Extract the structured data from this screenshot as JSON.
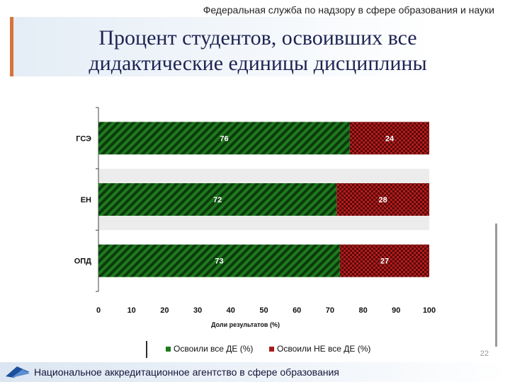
{
  "header": {
    "agency": "Федеральная служба по надзору в сфере образования и науки"
  },
  "slide": {
    "title_line1": "Процент студентов, освоивших все",
    "title_line2": "дидактические единицы дисциплины",
    "page_number": "22"
  },
  "footer": {
    "text": "Национальное аккредитационное агентство в сфере образования"
  },
  "colors": {
    "green": "#1f7a1f",
    "red": "#a61b1b",
    "accent": "#d9733a",
    "title": "#1d2452"
  },
  "chart_data": {
    "type": "bar",
    "orientation": "horizontal",
    "stacked": true,
    "categories": [
      "ГСЭ",
      "ЕН",
      "ОПД"
    ],
    "series": [
      {
        "name": "Освоили все ДЕ (%)",
        "values": [
          76,
          72,
          73
        ],
        "color": "#1f7a1f"
      },
      {
        "name": "Освоили НЕ все ДЕ (%)",
        "values": [
          24,
          28,
          27
        ],
        "color": "#a61b1b"
      }
    ],
    "xlabel": "Доли результатов (%)",
    "ylabel": "",
    "xlim": [
      0,
      100
    ],
    "xticks": [
      0,
      10,
      20,
      30,
      40,
      50,
      60,
      70,
      80,
      90,
      100
    ],
    "legend_position": "bottom"
  }
}
